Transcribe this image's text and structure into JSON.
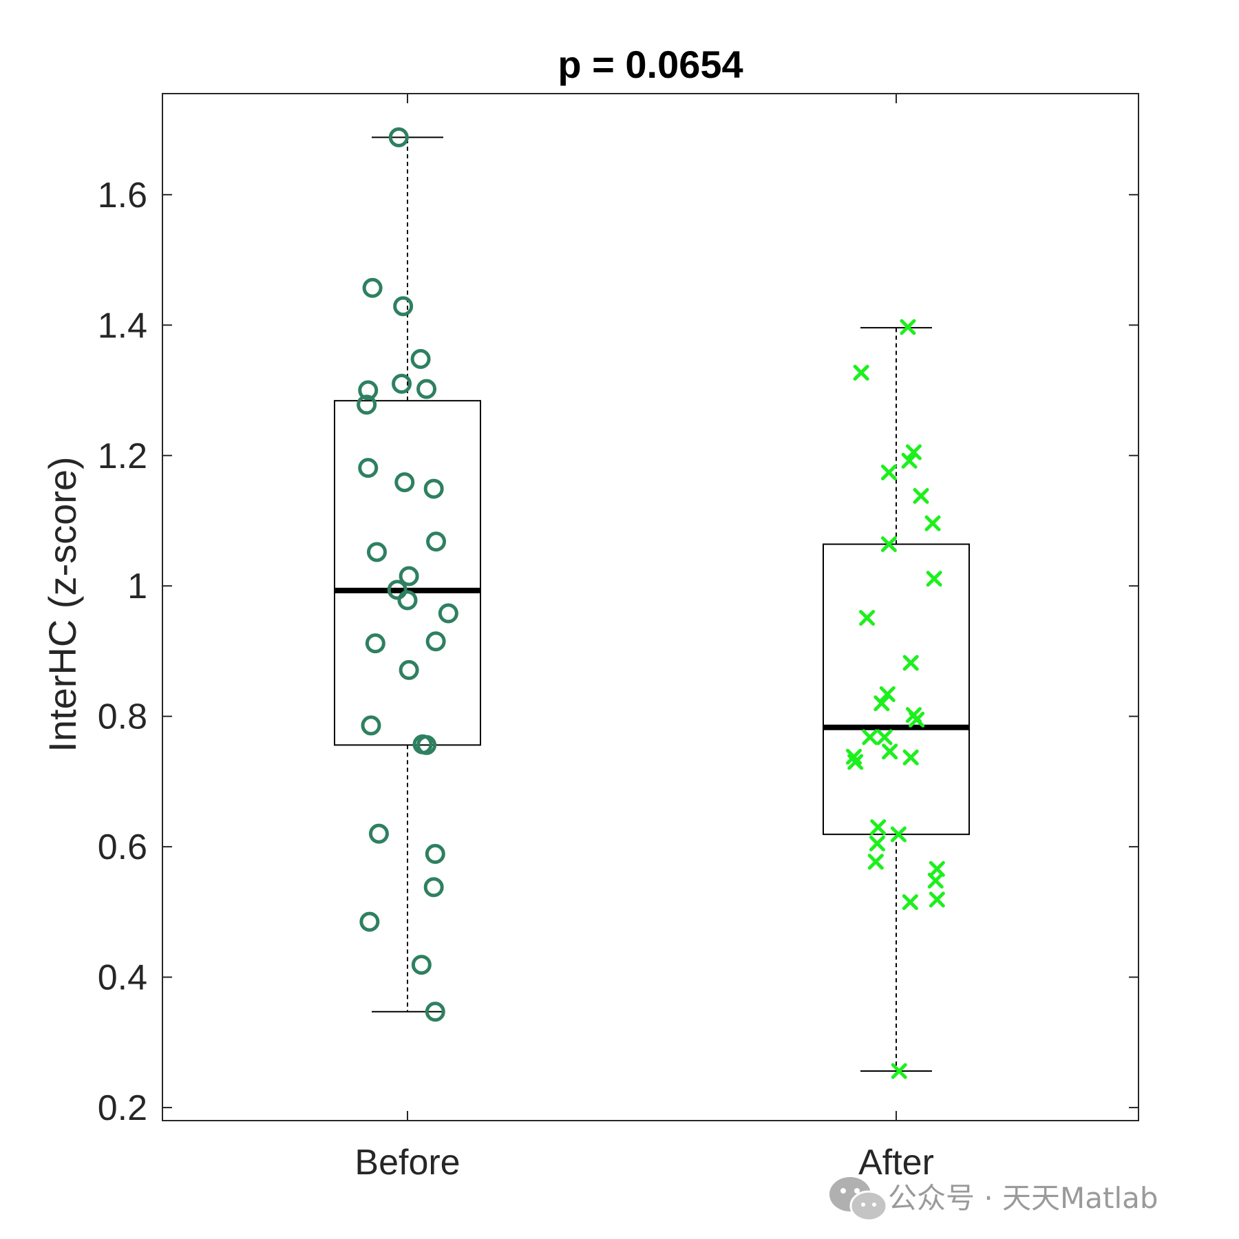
{
  "chart_data": {
    "type": "box",
    "title": "p = 0.0654",
    "xlabel": "",
    "ylabel": "InterHC (z-score)",
    "ylim": [
      0.18,
      1.755
    ],
    "yticks": [
      0.2,
      0.4,
      0.6,
      0.8,
      1,
      1.2,
      1.4,
      1.6
    ],
    "yticklabels": [
      "0.2",
      "0.4",
      "0.6",
      "0.8",
      "1",
      "1.2",
      "1.4",
      "1.6"
    ],
    "categories": [
      "Before",
      "After"
    ],
    "grid": false,
    "series": [
      {
        "name": "Before",
        "box": {
          "whisker_low": 0.347,
          "q1": 0.756,
          "median": 0.993,
          "q3": 1.284,
          "whisker_high": 1.688
        },
        "marker": "circle",
        "color": "#2e8060",
        "points": [
          {
            "jitter": -0.03,
            "y": 1.688
          },
          {
            "jitter": -0.12,
            "y": 1.457
          },
          {
            "jitter": -0.015,
            "y": 1.429
          },
          {
            "jitter": 0.045,
            "y": 1.348
          },
          {
            "jitter": -0.135,
            "y": 1.3
          },
          {
            "jitter": -0.02,
            "y": 1.31
          },
          {
            "jitter": 0.065,
            "y": 1.302
          },
          {
            "jitter": -0.14,
            "y": 1.278
          },
          {
            "jitter": -0.135,
            "y": 1.181
          },
          {
            "jitter": -0.01,
            "y": 1.159
          },
          {
            "jitter": 0.09,
            "y": 1.149
          },
          {
            "jitter": 0.098,
            "y": 1.068
          },
          {
            "jitter": -0.105,
            "y": 1.052
          },
          {
            "jitter": 0.005,
            "y": 1.015
          },
          {
            "jitter": -0.035,
            "y": 0.994
          },
          {
            "jitter": 0.0,
            "y": 0.978
          },
          {
            "jitter": 0.14,
            "y": 0.958
          },
          {
            "jitter": 0.097,
            "y": 0.915
          },
          {
            "jitter": -0.11,
            "y": 0.912
          },
          {
            "jitter": 0.005,
            "y": 0.871
          },
          {
            "jitter": -0.125,
            "y": 0.786
          },
          {
            "jitter": 0.052,
            "y": 0.757
          },
          {
            "jitter": 0.065,
            "y": 0.756
          },
          {
            "jitter": -0.098,
            "y": 0.62
          },
          {
            "jitter": 0.095,
            "y": 0.589
          },
          {
            "jitter": 0.09,
            "y": 0.538
          },
          {
            "jitter": -0.13,
            "y": 0.485
          },
          {
            "jitter": 0.048,
            "y": 0.419
          },
          {
            "jitter": 0.095,
            "y": 0.347
          }
        ]
      },
      {
        "name": "After",
        "box": {
          "whisker_low": 0.256,
          "q1": 0.619,
          "median": 0.783,
          "q3": 1.064,
          "whisker_high": 1.396
        },
        "marker": "x",
        "color": "#1cf01c",
        "points": [
          {
            "jitter": 0.04,
            "y": 1.397
          },
          {
            "jitter": -0.12,
            "y": 1.327
          },
          {
            "jitter": 0.06,
            "y": 1.205
          },
          {
            "jitter": 0.045,
            "y": 1.192
          },
          {
            "jitter": -0.025,
            "y": 1.174
          },
          {
            "jitter": 0.085,
            "y": 1.138
          },
          {
            "jitter": 0.125,
            "y": 1.096
          },
          {
            "jitter": -0.025,
            "y": 1.064
          },
          {
            "jitter": 0.13,
            "y": 1.011
          },
          {
            "jitter": -0.1,
            "y": 0.951
          },
          {
            "jitter": 0.05,
            "y": 0.882
          },
          {
            "jitter": -0.03,
            "y": 0.834
          },
          {
            "jitter": -0.05,
            "y": 0.82
          },
          {
            "jitter": 0.06,
            "y": 0.802
          },
          {
            "jitter": 0.07,
            "y": 0.795
          },
          {
            "jitter": -0.09,
            "y": 0.768
          },
          {
            "jitter": -0.04,
            "y": 0.768
          },
          {
            "jitter": -0.022,
            "y": 0.746
          },
          {
            "jitter": -0.145,
            "y": 0.738
          },
          {
            "jitter": 0.05,
            "y": 0.737
          },
          {
            "jitter": -0.14,
            "y": 0.73
          },
          {
            "jitter": -0.062,
            "y": 0.63
          },
          {
            "jitter": 0.008,
            "y": 0.619
          },
          {
            "jitter": -0.065,
            "y": 0.605
          },
          {
            "jitter": -0.07,
            "y": 0.577
          },
          {
            "jitter": 0.14,
            "y": 0.566
          },
          {
            "jitter": 0.135,
            "y": 0.548
          },
          {
            "jitter": 0.14,
            "y": 0.519
          },
          {
            "jitter": 0.048,
            "y": 0.515
          },
          {
            "jitter": 0.01,
            "y": 0.256
          }
        ]
      }
    ]
  },
  "watermark": {
    "text": "公众号 · 天天Matlab",
    "icon": "wechat-icon"
  }
}
